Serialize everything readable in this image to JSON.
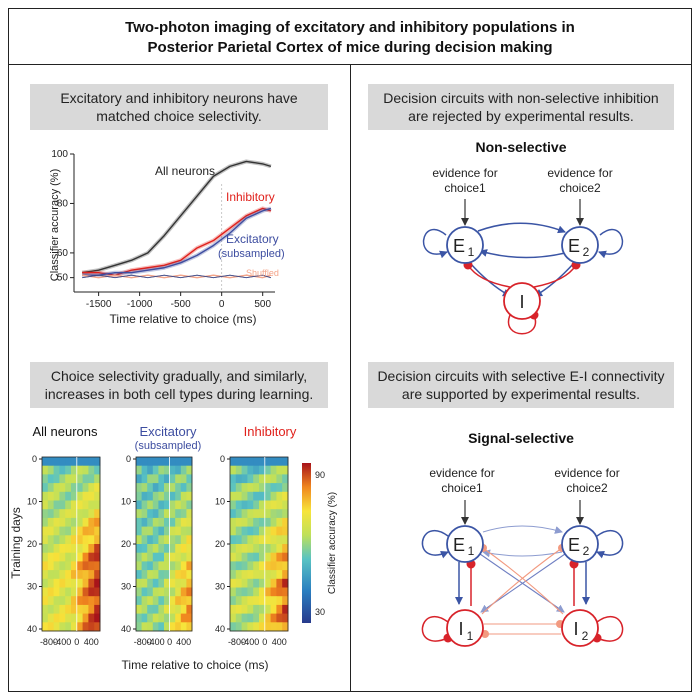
{
  "title": {
    "line1": "Two-photon imaging of excitatory and inhibitory populations in",
    "line2": "Posterior Parietal Cortex of mice during decision making"
  },
  "panels": {
    "top_left": {
      "line1": "Excitatory and inhibitory neurons have",
      "line2": "matched choice selectivity."
    },
    "bottom_left": {
      "line1": "Choice selectivity gradually, and similarly,",
      "line2": "increases in both cell types during learning."
    },
    "top_right": {
      "line1": "Decision circuits with non-selective inhibition",
      "line2": "are rejected by experimental results."
    },
    "bottom_right": {
      "line1": "Decision circuits with selective E-I connectivity",
      "line2": "are supported by experimental results."
    }
  },
  "colors": {
    "black": "#333333",
    "inhibitory": "#e0201b",
    "excitatory": "#3d4da0",
    "shuffled": "#f4a58a",
    "net_blue": "#3b55a5",
    "net_red": "#d8232a"
  },
  "chart_data": [
    {
      "type": "line",
      "xlabel": "Time relative to choice (ms)",
      "ylabel": "Classifier accuracy (%)",
      "xlim": [
        -1800,
        650
      ],
      "ylim": [
        45,
        100
      ],
      "x_ticks": [
        "-1500",
        "-1000",
        "-500",
        "0",
        "500"
      ],
      "y_ticks": [
        "50",
        "60",
        "80",
        "100"
      ],
      "x": [
        -1700,
        -1500,
        -1300,
        -1100,
        -900,
        -700,
        -500,
        -300,
        -100,
        100,
        300,
        500,
        600
      ],
      "series": [
        {
          "name": "All neurons",
          "values": [
            52,
            53,
            55,
            57,
            60,
            67,
            75,
            83,
            91,
            95,
            97,
            96,
            95
          ]
        },
        {
          "name": "Inhibitory",
          "values": [
            52,
            52,
            51,
            53,
            54,
            55,
            57,
            62,
            65,
            70,
            75,
            78,
            77
          ]
        },
        {
          "name": "Excitatory",
          "sublabel": "(subsampled)",
          "values": [
            51,
            51,
            52,
            52,
            53,
            54,
            56,
            59,
            63,
            68,
            74,
            77,
            78
          ]
        },
        {
          "name": "Shuffled",
          "values": [
            51,
            50,
            51,
            50,
            51,
            50,
            51,
            50,
            51,
            50,
            51,
            50,
            51
          ]
        }
      ]
    },
    {
      "type": "heatmap",
      "xlabel": "Time relative to choice (ms)",
      "ylabel": "Training days",
      "x_ticks": [
        "-800",
        "-400",
        "0",
        "400"
      ],
      "y_ticks": [
        "0",
        "10",
        "20",
        "30",
        "40"
      ],
      "colorbar": {
        "label": "Classifier accuracy (%)",
        "max_label": "90",
        "min_label": "30"
      },
      "panels": [
        {
          "title": "All neurons"
        },
        {
          "title": "Excitatory",
          "subtitle": "(subsampled)"
        },
        {
          "title": "Inhibitory"
        }
      ]
    }
  ],
  "networks": {
    "non_selective": {
      "title": "Non-selective",
      "evidence1": {
        "line1": "evidence for",
        "line2": "choice1"
      },
      "evidence2": {
        "line1": "evidence for",
        "line2": "choice2"
      },
      "nodes": {
        "e1": "E",
        "e1_sub": "1",
        "e2": "E",
        "e2_sub": "2",
        "i": "I"
      }
    },
    "signal_selective": {
      "title": "Signal-selective",
      "evidence1": {
        "line1": "evidence for",
        "line2": "choice1"
      },
      "evidence2": {
        "line1": "evidence for",
        "line2": "choice2"
      },
      "nodes": {
        "e1": "E",
        "e1_sub": "1",
        "e2": "E",
        "e2_sub": "2",
        "i1": "I",
        "i1_sub": "1",
        "i2": "I",
        "i2_sub": "2"
      }
    }
  }
}
